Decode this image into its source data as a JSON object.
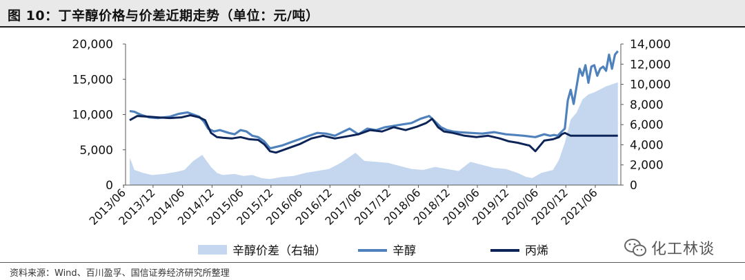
{
  "header": {
    "title": "图 10：丁辛醇价格与价差近期走势（单位：元/吨）"
  },
  "footer": {
    "source": "资料来源：Wind、百川盈孚、国信证券经济研究所整理"
  },
  "watermark": {
    "text": "化工林谈",
    "icon": "wechat-icon"
  },
  "colors": {
    "spread": "#c5d7ee",
    "octanol": "#4f81bd",
    "butanol": "#0d2458"
  },
  "chart_data": {
    "type": "line",
    "title": "丁辛醇价格与价差近期走势",
    "x_labels": [
      "2013/06",
      "2013/12",
      "2014/06",
      "2014/12",
      "2015/06",
      "2015/12",
      "2016/06",
      "2016/12",
      "2017/06",
      "2017/12",
      "2018/06",
      "2018/12",
      "2019/06",
      "2019/12",
      "2020/06",
      "2020/12",
      "2021/06"
    ],
    "x_range": [
      2013.45,
      2021.85
    ],
    "left_axis": {
      "ylim": [
        0,
        20000
      ],
      "ticks": [
        "0",
        "5,000",
        "10,000",
        "15,000",
        "20,000"
      ]
    },
    "right_axis": {
      "ylim": [
        0,
        14000
      ],
      "ticks": [
        "0",
        "2,000",
        "4,000",
        "6,000",
        "8,000",
        "10,000",
        "12,000",
        "14,000"
      ]
    },
    "series": [
      {
        "name": "辛醇价差（右轴）",
        "kind": "area",
        "axis": "right",
        "x": [
          2013.52,
          2013.55,
          2013.6,
          2013.75,
          2013.9,
          2014.1,
          2014.3,
          2014.45,
          2014.6,
          2014.75,
          2014.9,
          2015.0,
          2015.1,
          2015.3,
          2015.45,
          2015.6,
          2015.75,
          2015.9,
          2016.1,
          2016.3,
          2016.5,
          2016.7,
          2016.9,
          2017.1,
          2017.2,
          2017.35,
          2017.5,
          2017.7,
          2017.9,
          2018.1,
          2018.3,
          2018.5,
          2018.7,
          2018.9,
          2019.1,
          2019.3,
          2019.5,
          2019.7,
          2019.9,
          2020.1,
          2020.25,
          2020.35,
          2020.5,
          2020.7,
          2020.8,
          2020.9,
          2021.0,
          2021.1,
          2021.2,
          2021.3,
          2021.4,
          2021.5,
          2021.6,
          2021.7,
          2021.8
        ],
        "values": [
          2700,
          2300,
          1500,
          1200,
          1000,
          1100,
          1300,
          1500,
          2400,
          3000,
          1800,
          1200,
          1000,
          1100,
          900,
          1000,
          700,
          600,
          800,
          900,
          1200,
          1400,
          1600,
          2200,
          2600,
          3200,
          2400,
          2300,
          2200,
          1900,
          1600,
          1500,
          1800,
          1600,
          1400,
          2300,
          2000,
          1700,
          1600,
          1200,
          800,
          700,
          1200,
          1500,
          2500,
          4200,
          6500,
          7200,
          8500,
          9000,
          9200,
          9500,
          9800,
          10000,
          10200
        ]
      },
      {
        "name": "辛醇",
        "kind": "line",
        "axis": "left",
        "x": [
          2013.52,
          2013.6,
          2013.7,
          2013.85,
          2014.0,
          2014.2,
          2014.35,
          2014.5,
          2014.6,
          2014.7,
          2014.78,
          2014.85,
          2014.95,
          2015.05,
          2015.2,
          2015.3,
          2015.4,
          2015.5,
          2015.6,
          2015.7,
          2015.8,
          2015.9,
          2016.1,
          2016.3,
          2016.5,
          2016.7,
          2016.85,
          2017.0,
          2017.15,
          2017.25,
          2017.4,
          2017.55,
          2017.7,
          2017.85,
          2018.0,
          2018.15,
          2018.3,
          2018.45,
          2018.6,
          2018.7,
          2018.8,
          2018.9,
          2019.0,
          2019.1,
          2019.3,
          2019.5,
          2019.7,
          2019.9,
          2020.05,
          2020.2,
          2020.3,
          2020.4,
          2020.55,
          2020.65,
          2020.72,
          2020.78,
          2020.85,
          2020.9,
          2020.95,
          2021.0,
          2021.05,
          2021.1,
          2021.15,
          2021.2,
          2021.25,
          2021.3,
          2021.35,
          2021.4,
          2021.45,
          2021.5,
          2021.55,
          2021.6,
          2021.65,
          2021.7,
          2021.75,
          2021.8
        ],
        "values": [
          10500,
          10400,
          10000,
          9600,
          9500,
          9700,
          10100,
          10300,
          10000,
          9700,
          9000,
          8000,
          7600,
          7800,
          7400,
          7200,
          7800,
          7600,
          7000,
          6800,
          6200,
          5200,
          5600,
          6200,
          6800,
          7400,
          7300,
          7000,
          7600,
          8000,
          7200,
          8000,
          7800,
          8200,
          8400,
          8600,
          8800,
          9400,
          9800,
          9000,
          8200,
          7800,
          7600,
          7500,
          7400,
          7300,
          7500,
          7200,
          7100,
          7000,
          6900,
          6800,
          7200,
          7000,
          7100,
          7000,
          7600,
          8000,
          12000,
          13500,
          11500,
          14000,
          16500,
          15500,
          17000,
          14500,
          16800,
          17000,
          15500,
          16500,
          16800,
          16200,
          18500,
          16500,
          18500,
          19000
        ]
      },
      {
        "name": "丙烯",
        "kind": "line",
        "axis": "left",
        "x": [
          2013.52,
          2013.65,
          2013.85,
          2014.0,
          2014.2,
          2014.4,
          2014.55,
          2014.7,
          2014.8,
          2014.9,
          2015.0,
          2015.1,
          2015.25,
          2015.4,
          2015.55,
          2015.7,
          2015.8,
          2015.9,
          2016.0,
          2016.2,
          2016.4,
          2016.6,
          2016.8,
          2017.0,
          2017.2,
          2017.4,
          2017.6,
          2017.8,
          2018.0,
          2018.2,
          2018.4,
          2018.55,
          2018.65,
          2018.75,
          2018.85,
          2019.0,
          2019.2,
          2019.4,
          2019.6,
          2019.8,
          2019.95,
          2020.1,
          2020.2,
          2020.3,
          2020.4,
          2020.55,
          2020.7,
          2020.8,
          2020.85,
          2020.9,
          2021.0,
          2021.2,
          2021.4,
          2021.6,
          2021.8
        ],
        "values": [
          9200,
          9800,
          9700,
          9600,
          9500,
          9600,
          9900,
          9600,
          9200,
          7400,
          6800,
          6700,
          6600,
          6800,
          6500,
          6400,
          5800,
          4800,
          4600,
          5200,
          5800,
          6600,
          7000,
          6600,
          6900,
          7200,
          7800,
          7600,
          8200,
          7800,
          8300,
          8800,
          9400,
          8200,
          7600,
          7400,
          7000,
          6800,
          7000,
          6600,
          6200,
          6000,
          5800,
          5600,
          4800,
          6300,
          6500,
          6800,
          7200,
          7400,
          7000,
          7000,
          7000,
          7000,
          7000
        ]
      }
    ]
  }
}
